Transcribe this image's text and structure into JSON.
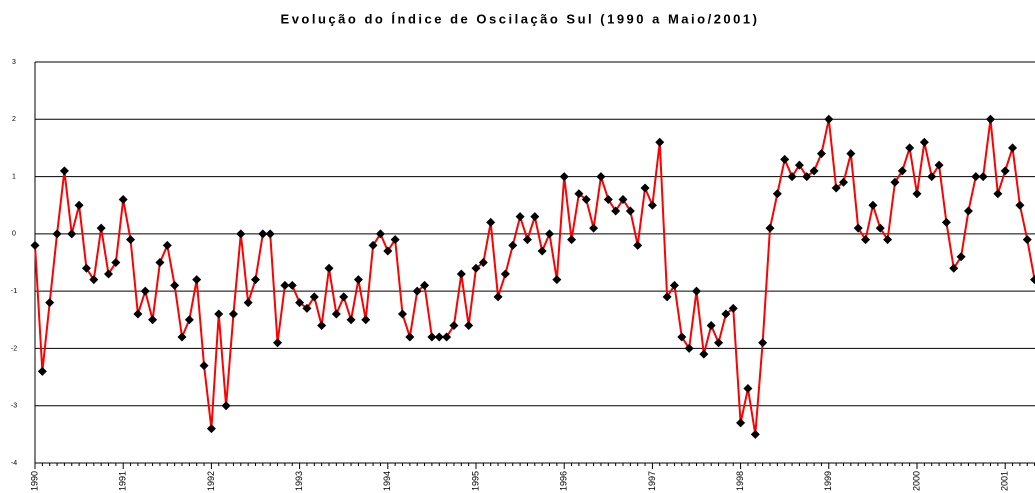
{
  "chart_data": {
    "type": "line",
    "title": "Evolução do Índice de Oscilação Sul (1990 a Maio/2001)",
    "categories": [
      "1990",
      null,
      null,
      null,
      null,
      null,
      null,
      null,
      null,
      null,
      null,
      null,
      "1991",
      null,
      null,
      null,
      null,
      null,
      null,
      null,
      null,
      null,
      null,
      null,
      "1992",
      null,
      null,
      null,
      null,
      null,
      null,
      null,
      null,
      null,
      null,
      null,
      "1993",
      null,
      null,
      null,
      null,
      null,
      null,
      null,
      null,
      null,
      null,
      null,
      "1994",
      null,
      null,
      null,
      null,
      null,
      null,
      null,
      null,
      null,
      null,
      null,
      "1995",
      null,
      null,
      null,
      null,
      null,
      null,
      null,
      null,
      null,
      null,
      null,
      "1996",
      null,
      null,
      null,
      null,
      null,
      null,
      null,
      null,
      null,
      null,
      null,
      "1997",
      null,
      null,
      null,
      null,
      null,
      null,
      null,
      null,
      null,
      null,
      null,
      "1998",
      null,
      null,
      null,
      null,
      null,
      null,
      null,
      null,
      null,
      null,
      null,
      "1999",
      null,
      null,
      null,
      null,
      null,
      null,
      null,
      null,
      null,
      null,
      null,
      "2000",
      null,
      null,
      null,
      null,
      null,
      null,
      null,
      null,
      null,
      null,
      null,
      "2001",
      null,
      null,
      null,
      null
    ],
    "values": [
      -0.2,
      -2.4,
      -1.2,
      0,
      1.1,
      0,
      0.5,
      -0.6,
      -0.8,
      0.1,
      -0.7,
      -0.5,
      0.6,
      -0.1,
      -1.4,
      -1.0,
      -1.5,
      -0.5,
      -0.2,
      -0.9,
      -1.8,
      -1.5,
      -0.8,
      -2.3,
      -3.4,
      -1.4,
      -3.0,
      -1.4,
      0,
      -1.2,
      -0.8,
      0,
      0,
      -1.9,
      -0.9,
      -0.9,
      -1.2,
      -1.3,
      -1.1,
      -1.6,
      -0.6,
      -1.4,
      -1.1,
      -1.5,
      -0.8,
      -1.5,
      -0.2,
      0,
      -0.3,
      -0.1,
      -1.4,
      -1.8,
      -1.0,
      -0.9,
      -1.8,
      -1.8,
      -1.8,
      -1.6,
      -0.7,
      -1.6,
      -0.6,
      -0.5,
      0.2,
      -1.1,
      -0.7,
      -0.2,
      0.3,
      -0.1,
      0.3,
      -0.3,
      0,
      -0.8,
      1.0,
      -0.1,
      0.7,
      0.6,
      0.1,
      1.0,
      0.6,
      0.4,
      0.6,
      0.4,
      -0.2,
      0.8,
      0.5,
      1.6,
      -1.1,
      -0.9,
      -1.8,
      -2.0,
      -1.0,
      -2.1,
      -1.6,
      -1.9,
      -1.4,
      -1.3,
      -3.3,
      -2.7,
      -3.5,
      -1.9,
      0.1,
      0.7,
      1.3,
      1.0,
      1.2,
      1.0,
      1.1,
      1.4,
      2.0,
      0.8,
      0.9,
      1.4,
      0.1,
      -0.1,
      0.5,
      0.1,
      -0.1,
      0.9,
      1.1,
      1.5,
      0.7,
      1.6,
      1.0,
      1.2,
      0.2,
      -0.6,
      -0.4,
      0.4,
      1.0,
      1.0,
      2.0,
      0.7,
      1.1,
      1.5,
      0.5,
      -0.1,
      -0.8
    ],
    "color": "#ff0000",
    "marker_color": "#000000",
    "ylim": [
      -4,
      3
    ],
    "yticks": [
      -4,
      -3,
      -2,
      -1,
      0,
      1,
      2,
      3
    ],
    "grid": true
  }
}
